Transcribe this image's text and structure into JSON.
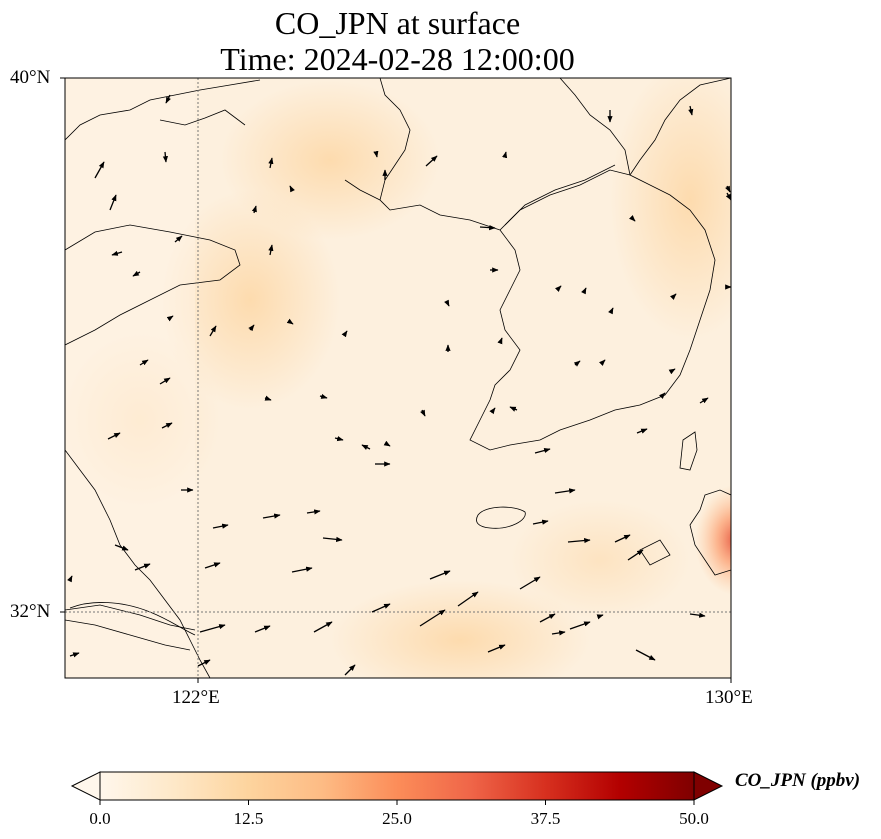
{
  "title": {
    "line1": "CO_JPN at surface",
    "line2": "Time: 2024-02-28 12:00:00"
  },
  "map": {
    "extent": {
      "lon": [
        119.75,
        130.0
      ],
      "lat": [
        30.75,
        40.0
      ]
    },
    "lat_ticks": [
      "40°N",
      "32°N"
    ],
    "lon_ticks": [
      "122°E",
      "130°E"
    ],
    "gridlines": {
      "lon": 122,
      "lat": 32,
      "style": "dotted"
    },
    "wind_vectors": "black arrows, predominantly westerly/northwesterly"
  },
  "colorbar": {
    "label": "CO_JPN (ppbv)",
    "ticks": [
      "0.0",
      "12.5",
      "25.0",
      "37.5",
      "50.0"
    ],
    "range": [
      0,
      50
    ],
    "colormap": "OrRd",
    "extend": "both",
    "colors": [
      "#fff7ec",
      "#fee8c8",
      "#fdd49e",
      "#fdbb84",
      "#fc8d59",
      "#ef6548",
      "#d7301f",
      "#b30000",
      "#7f0000"
    ]
  }
}
